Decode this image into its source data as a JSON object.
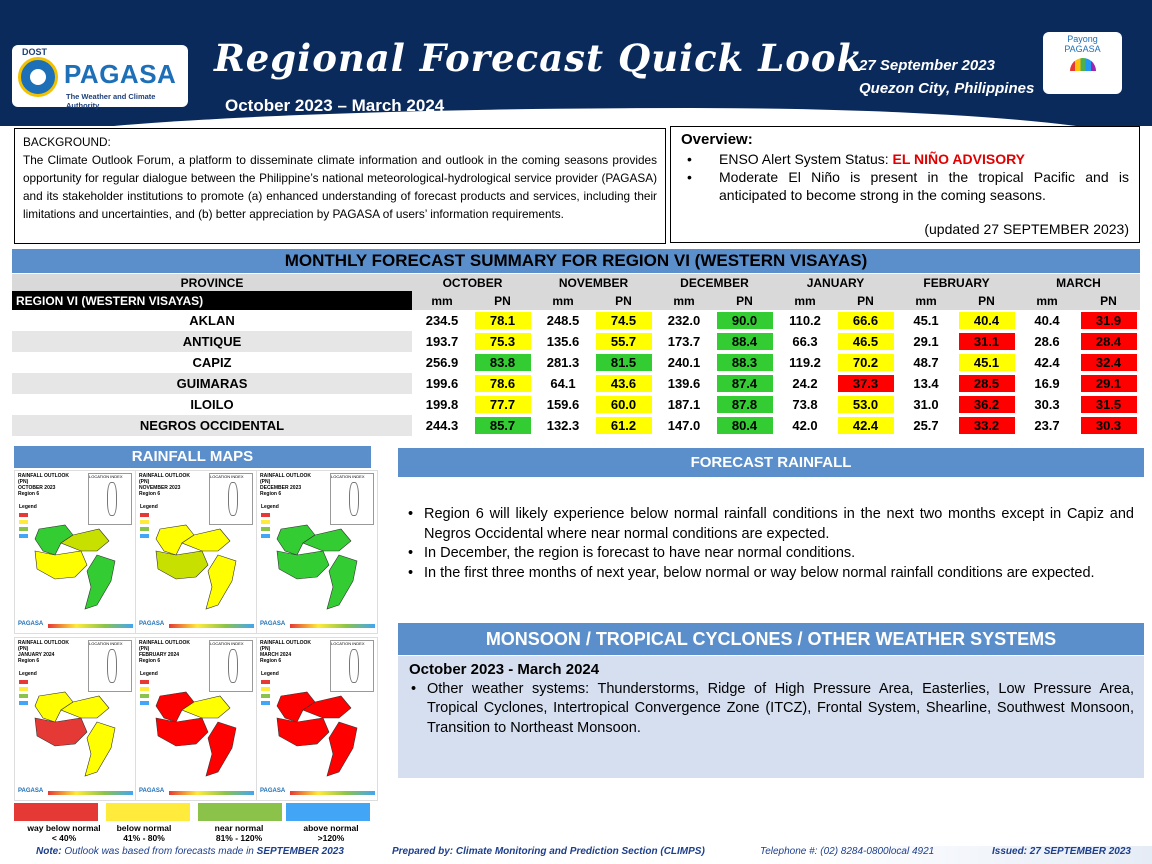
{
  "header": {
    "logo_top": "DOST",
    "logo_name": "PAGASA",
    "logo_tagline": "The Weather and Climate Authority",
    "title": "Regional Forecast Quick Look",
    "period": "October 2023 – March 2024",
    "date": "27 September 2023",
    "location": "Quezon City, Philippines",
    "payong_line1": "Payong",
    "payong_line2": "PAGASA",
    "colors": {
      "banner": "#0b2a5c",
      "section": "#5b8fcc"
    }
  },
  "background": {
    "label": "BACKGROUND:",
    "text": "The Climate Outlook Forum, a platform to disseminate climate information and outlook in the coming seasons provides opportunity for regular dialogue between the Philippine’s national meteorological-hydrological service provider (PAGASA) and its stakeholder institutions to promote (a) enhanced understanding of forecast products and services, including their limitations and uncertainties, and (b) better appreciation by PAGASA of users’ information requirements."
  },
  "overview": {
    "heading": "Overview:",
    "bullet1_prefix": "ENSO Alert System Status: ",
    "bullet1_status": "EL NIÑO ADVISORY",
    "bullet2": "Moderate El Niño is present in the tropical Pacific and is anticipated to become strong in the coming seasons.",
    "updated": "(updated 27 SEPTEMBER 2023)"
  },
  "table": {
    "title": "MONTHLY FORECAST SUMMARY FOR REGION VI (WESTERN VISAYAS)",
    "province_header": "PROVINCE",
    "region_label": "REGION VI (WESTERN VISAYAS)",
    "months": [
      "OCTOBER",
      "NOVEMBER",
      "DECEMBER",
      "JANUARY",
      "FEBRUARY",
      "MARCH"
    ],
    "sub_mm": "mm",
    "sub_pn": "PN",
    "rows": [
      {
        "province": "AKLAN",
        "mm": [
          "234.5",
          "248.5",
          "232.0",
          "110.2",
          "45.1",
          "40.4"
        ],
        "pn": [
          "78.1",
          "74.5",
          "90.0",
          "66.6",
          "40.4",
          "31.9"
        ],
        "cls": [
          "y",
          "y",
          "g",
          "y",
          "y",
          "r"
        ]
      },
      {
        "province": "ANTIQUE",
        "mm": [
          "193.7",
          "135.6",
          "173.7",
          "66.3",
          "29.1",
          "28.6"
        ],
        "pn": [
          "75.3",
          "55.7",
          "88.4",
          "46.5",
          "31.1",
          "28.4"
        ],
        "cls": [
          "y",
          "y",
          "g",
          "y",
          "r",
          "r"
        ]
      },
      {
        "province": "CAPIZ",
        "mm": [
          "256.9",
          "281.3",
          "240.1",
          "119.2",
          "48.7",
          "42.4"
        ],
        "pn": [
          "83.8",
          "81.5",
          "88.3",
          "70.2",
          "45.1",
          "32.4"
        ],
        "cls": [
          "g",
          "g",
          "g",
          "y",
          "y",
          "r"
        ]
      },
      {
        "province": "GUIMARAS",
        "mm": [
          "199.6",
          "64.1",
          "139.6",
          "24.2",
          "13.4",
          "16.9"
        ],
        "pn": [
          "78.6",
          "43.6",
          "87.4",
          "37.3",
          "28.5",
          "29.1"
        ],
        "cls": [
          "y",
          "y",
          "g",
          "r",
          "r",
          "r"
        ]
      },
      {
        "province": "ILOILO",
        "mm": [
          "199.8",
          "159.6",
          "187.1",
          "73.8",
          "31.0",
          "30.3"
        ],
        "pn": [
          "77.7",
          "60.0",
          "87.8",
          "53.0",
          "36.2",
          "31.5"
        ],
        "cls": [
          "y",
          "y",
          "g",
          "y",
          "r",
          "r"
        ]
      },
      {
        "province": "NEGROS OCCIDENTAL",
        "mm": [
          "244.3",
          "132.3",
          "147.0",
          "42.0",
          "25.7",
          "23.7"
        ],
        "pn": [
          "85.7",
          "61.2",
          "80.4",
          "42.4",
          "33.2",
          "30.3"
        ],
        "cls": [
          "g",
          "y",
          "g",
          "y",
          "r",
          "r"
        ]
      }
    ],
    "colors": {
      "g": "#33cc33",
      "y": "#ffff00",
      "r": "#ff0000"
    }
  },
  "maps": {
    "title": "RAINFALL MAPS",
    "items": [
      {
        "title1": "RAINFALL OUTLOOK (PN)",
        "title2": "OCTOBER 2023",
        "title3": "Region 6",
        "colors": [
          "#33cc33",
          "#c8e000",
          "#ffff00",
          "#33cc33"
        ]
      },
      {
        "title1": "RAINFALL OUTLOOK (PN)",
        "title2": "NOVEMBER 2023",
        "title3": "Region 6",
        "colors": [
          "#ffff00",
          "#ffff00",
          "#c8e000",
          "#ffff00"
        ]
      },
      {
        "title1": "RAINFALL OUTLOOK (PN)",
        "title2": "DECEMBER 2023",
        "title3": "Region 6",
        "colors": [
          "#33cc33",
          "#33cc33",
          "#33cc33",
          "#33cc33"
        ]
      },
      {
        "title1": "RAINFALL OUTLOOK (PN)",
        "title2": "JANUARY 2024",
        "title3": "Region 6",
        "colors": [
          "#ffff00",
          "#ffff00",
          "#e53935",
          "#ffff00"
        ]
      },
      {
        "title1": "RAINFALL OUTLOOK (PN)",
        "title2": "FEBRUARY 2024",
        "title3": "Region 6",
        "colors": [
          "#ff0000",
          "#ffff00",
          "#ff0000",
          "#ff0000"
        ]
      },
      {
        "title1": "RAINFALL OUTLOOK (PN)",
        "title2": "MARCH 2024",
        "title3": "Region 6",
        "colors": [
          "#ff0000",
          "#ff0000",
          "#ff0000",
          "#ff0000"
        ]
      }
    ],
    "legend_label": "Legend",
    "inset_label": "LOCATION INDEX"
  },
  "legend": [
    {
      "label": "way below normal",
      "range": "< 40%",
      "color": "#e53935"
    },
    {
      "label": "below normal",
      "range": "41% - 80%",
      "color": "#ffeb3b"
    },
    {
      "label": "near normal",
      "range": "81% - 120%",
      "color": "#8bc34a"
    },
    {
      "label": "above normal",
      "range": ">120%",
      "color": "#42a5f5"
    }
  ],
  "forecast": {
    "title": "FORECAST RAINFALL",
    "bullets": [
      "Region 6 will likely experience below normal rainfall conditions in the next two months except in Capiz and Negros Occidental where near normal conditions are expected.",
      "In December, the region is forecast to have near normal conditions.",
      "In the first three months of next year, below normal or way below normal rainfall conditions are expected."
    ]
  },
  "monsoon": {
    "title": "MONSOON / TROPICAL CYCLONES / OTHER WEATHER SYSTEMS",
    "period": "October 2023 - March 2024",
    "bullet": "Other weather systems: Thunderstorms,  Ridge of High Pressure Area,  Easterlies, Low Pressure Area, Tropical Cyclones, Intertropical Convergence Zone (ITCZ), Frontal System, Shearline, Southwest Monsoon, Transition to Northeast Monsoon."
  },
  "footer": {
    "note_label": "Note:",
    "note_text": " Outlook was based from forecasts made in ",
    "note_month": "SEPTEMBER 2023",
    "prepared": "Prepared by: Climate Monitoring and Prediction Section (CLIMPS)",
    "telephone": "Telephone #: (02) 8284-0800local 4921",
    "issued": "Issued: 27 SEPTEMBER 2023"
  }
}
